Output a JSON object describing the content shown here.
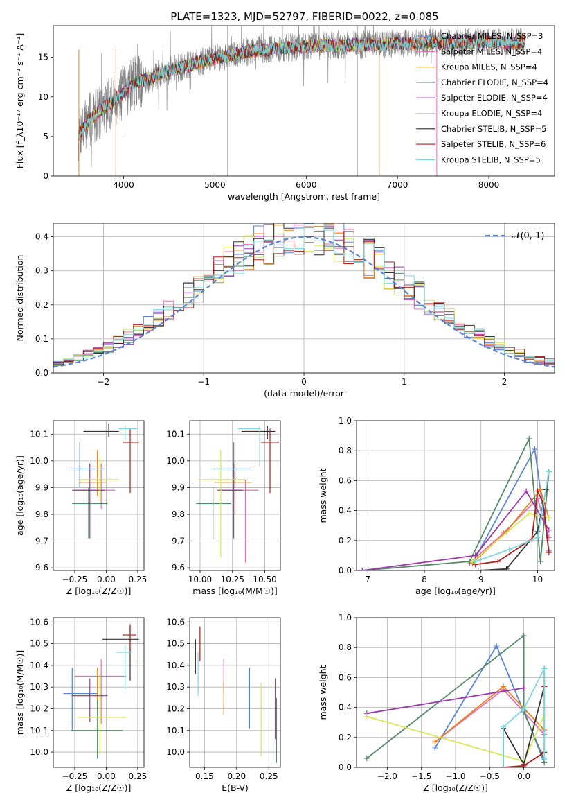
{
  "figure": {
    "suptitle": "PLATE=1323, MJD=52797, FIBERID=0022, z=0.085"
  },
  "chart_data": [
    {
      "id": "spectrum",
      "type": "line",
      "title": "PLATE=1323, MJD=52797, FIBERID=0022, z=0.085",
      "xlabel": "wavelength [Angstrom, rest frame]",
      "ylabel": "Flux [f_λ10⁻¹⁷ erg cm⁻² s⁻¹ A⁻¹]",
      "xlim": [
        3230,
        8720
      ],
      "ylim": [
        0,
        19
      ],
      "xticks": [
        4000,
        5000,
        6000,
        7000,
        8000
      ],
      "yticks": [
        0,
        5,
        10,
        15
      ],
      "grid": false,
      "legend_position": "top-right",
      "continuum_x": [
        3500,
        3600,
        3700,
        3800,
        3900,
        4000,
        4100,
        4200,
        4300,
        4400,
        4500,
        4600,
        4800,
        5000,
        5200,
        5400,
        5600,
        5800,
        6000,
        6200,
        6400,
        6600,
        6800,
        7000,
        7200,
        7400,
        7600,
        7800,
        8000,
        8200,
        8400
      ],
      "continuum_y": [
        5.0,
        6.8,
        7.8,
        8.8,
        9.6,
        10.6,
        11.6,
        12.0,
        12.2,
        13.0,
        13.3,
        13.6,
        14.3,
        14.9,
        15.3,
        15.8,
        16.0,
        16.2,
        16.4,
        16.5,
        16.5,
        16.6,
        16.6,
        16.8,
        16.7,
        16.9,
        16.8,
        16.9,
        17.0,
        16.8,
        17.0
      ],
      "series": [
        {
          "name": "Chabrier MILES, N_SSP=3",
          "color": "#5b84d6"
        },
        {
          "name": "Salpeter MILES, N_SSP=4",
          "color": "#e46fb8"
        },
        {
          "name": "Kroupa MILES, N_SSP=4",
          "color": "#e8841f"
        },
        {
          "name": "Chabrier ELODIE, N_SSP=4",
          "color": "#56896a"
        },
        {
          "name": "Salpeter ELODIE, N_SSP=4",
          "color": "#9b38ad"
        },
        {
          "name": "Kroupa ELODIE, N_SSP=4",
          "color": "#d6e85a"
        },
        {
          "name": "Chabrier STELIB, N_SSP=5",
          "color": "#333333"
        },
        {
          "name": "Salpeter STELIB, N_SSP=6",
          "color": "#b21c1c"
        },
        {
          "name": "Kroupa STELIB, N_SSP=5",
          "color": "#7fd9de"
        }
      ],
      "data_color": "#808080"
    },
    {
      "id": "residuals",
      "type": "line",
      "xlabel": "(data-model)/error",
      "ylabel": "Normed distribution",
      "xlim": [
        -2.5,
        2.5
      ],
      "ylim": [
        0,
        0.44
      ],
      "xticks": [
        -2,
        -1,
        0,
        1,
        2
      ],
      "yticks": [
        0.0,
        0.1,
        0.2,
        0.3,
        0.4
      ],
      "grid": true,
      "legend_position": "top-right",
      "gaussian_label": "𝒩(0, 1)",
      "gaussian_color": "#5b84d6",
      "bin_width": 0.1
    },
    {
      "id": "age-vs-Z",
      "type": "scatter",
      "xlabel": "Z [log₁₀(Z/Z☉)]",
      "ylabel": "age  [log₁₀(age/yr)]",
      "xlim": [
        -0.42,
        0.3
      ],
      "ylim": [
        9.59,
        10.15
      ],
      "xticks": [
        -0.25,
        0.0,
        0.25
      ],
      "yticks": [
        9.6,
        9.7,
        9.8,
        9.9,
        10.0,
        10.1
      ],
      "grid": true,
      "points": [
        {
          "color": "#5b84d6",
          "x": -0.21,
          "xerr": [
            0.07,
            0.2
          ],
          "y": 9.97,
          "yerr": [
            0.07,
            0.1
          ]
        },
        {
          "color": "#e46fb8",
          "x": -0.04,
          "xerr": [
            0.21,
            0.11
          ],
          "y": 9.89,
          "yerr": [
            0.07,
            0.1
          ]
        },
        {
          "color": "#e8841f",
          "x": -0.07,
          "xerr": [
            0.15,
            0.07
          ],
          "y": 9.92,
          "yerr": [
            0.05,
            0.12
          ]
        },
        {
          "color": "#56896a",
          "x": -0.14,
          "xerr": [
            0.13,
            0.15
          ],
          "y": 9.84,
          "yerr": [
            0.13,
            0.06
          ]
        },
        {
          "color": "#9b38ad",
          "x": -0.13,
          "xerr": [
            0.14,
            0.12
          ],
          "y": 9.89,
          "yerr": [
            0.18,
            0.1
          ]
        },
        {
          "color": "#d6e85a",
          "x": -0.05,
          "xerr": [
            0.18,
            0.15
          ],
          "y": 9.93,
          "yerr": [
            0.08,
            0.08
          ]
        },
        {
          "color": "#333333",
          "x": 0.02,
          "xerr": [
            0.2,
            0.08
          ],
          "y": 10.11,
          "yerr": [
            0.02,
            0.03
          ]
        },
        {
          "color": "#b21c1c",
          "x": 0.19,
          "xerr": [
            0.06,
            0.07
          ],
          "y": 10.07,
          "yerr": [
            0.19,
            0.05
          ]
        },
        {
          "color": "#7fd9de",
          "x": 0.15,
          "xerr": [
            0.05,
            0.1
          ],
          "y": 10.12,
          "yerr": [
            0.04,
            0.01
          ]
        }
      ]
    },
    {
      "id": "age-vs-mass",
      "type": "scatter",
      "xlabel": "mass [log₁₀(M/M☉)]",
      "ylabel": "",
      "xlim": [
        9.92,
        10.62
      ],
      "ylim": [
        9.59,
        10.15
      ],
      "xticks": [
        10.0,
        10.25,
        10.5
      ],
      "yticks": [
        9.6,
        9.7,
        9.8,
        9.9,
        10.0,
        10.1
      ],
      "grid": true,
      "points": [
        {
          "color": "#5b84d6",
          "x": 10.26,
          "xerr": [
            0.16,
            0.13
          ],
          "y": 9.97,
          "yerr": [
            0.07,
            0.1
          ]
        },
        {
          "color": "#e46fb8",
          "x": 10.35,
          "xerr": [
            0.22,
            0.1
          ],
          "y": 9.89,
          "yerr": [
            0.27,
            0.04
          ]
        },
        {
          "color": "#e8841f",
          "x": 10.27,
          "xerr": [
            0.16,
            0.13
          ],
          "y": 9.92,
          "yerr": [
            0.12,
            0.08
          ]
        },
        {
          "color": "#56896a",
          "x": 10.1,
          "xerr": [
            0.13,
            0.14
          ],
          "y": 9.84,
          "yerr": [
            0.13,
            0.06
          ]
        },
        {
          "color": "#9b38ad",
          "x": 10.26,
          "xerr": [
            0.12,
            0.07
          ],
          "y": 9.89,
          "yerr": [
            0.18,
            0.1
          ]
        },
        {
          "color": "#d6e85a",
          "x": 10.16,
          "xerr": [
            0.17,
            0.2
          ],
          "y": 9.93,
          "yerr": [
            0.29,
            0.11
          ]
        },
        {
          "color": "#333333",
          "x": 10.52,
          "xerr": [
            0.2,
            0.06
          ],
          "y": 10.11,
          "yerr": [
            0.03,
            0.02
          ]
        },
        {
          "color": "#b21c1c",
          "x": 10.54,
          "xerr": [
            0.07,
            0.07
          ],
          "y": 10.07,
          "yerr": [
            0.19,
            0.05
          ]
        },
        {
          "color": "#7fd9de",
          "x": 10.46,
          "xerr": [
            0.17,
            0.01
          ],
          "y": 10.12,
          "yerr": [
            0.14,
            0.01
          ]
        }
      ]
    },
    {
      "id": "weight-vs-age",
      "type": "line",
      "xlabel": "age  [log₁₀(age/yr)]",
      "ylabel": "mass weight",
      "xlim": [
        6.8,
        10.3
      ],
      "ylim": [
        0,
        1.0
      ],
      "xticks": [
        7,
        8,
        9,
        10
      ],
      "yticks": [
        0.0,
        0.2,
        0.4,
        0.6,
        0.8,
        1.0
      ],
      "grid": true,
      "series": [
        {
          "color": "#5b84d6",
          "x": [
            8.85,
            9.95,
            10.2
          ],
          "y": [
            0.05,
            0.81,
            0.13
          ]
        },
        {
          "color": "#e46fb8",
          "x": [
            8.8,
            9.4,
            10.0,
            10.2
          ],
          "y": [
            0.05,
            0.25,
            0.48,
            0.22
          ]
        },
        {
          "color": "#e8841f",
          "x": [
            8.85,
            9.45,
            10.05,
            10.2
          ],
          "y": [
            0.05,
            0.26,
            0.54,
            0.35
          ]
        },
        {
          "color": "#56896a",
          "x": [
            6.9,
            8.8,
            9.85,
            10.05,
            10.2
          ],
          "y": [
            0.0,
            0.06,
            0.88,
            0.06,
            0.66
          ]
        },
        {
          "color": "#9b38ad",
          "x": [
            6.9,
            8.9,
            9.8,
            10.2
          ],
          "y": [
            0.0,
            0.1,
            0.53,
            0.27
          ]
        },
        {
          "color": "#d6e85a",
          "x": [
            8.85,
            9.85,
            10.2
          ],
          "y": [
            0.06,
            0.38,
            0.35
          ]
        },
        {
          "color": "#333333",
          "x": [
            8.95,
            9.45,
            10.0,
            10.15,
            10.2
          ],
          "y": [
            0.0,
            0.01,
            0.26,
            0.54,
            0.66
          ]
        },
        {
          "color": "#b21c1c",
          "x": [
            8.9,
            9.3,
            9.9,
            10.0,
            10.1,
            10.2
          ],
          "y": [
            0.04,
            0.06,
            0.21,
            0.53,
            0.45,
            0.12
          ]
        },
        {
          "color": "#7fd9de",
          "x": [
            8.9,
            9.5,
            10.0,
            10.2
          ],
          "y": [
            0.06,
            0.14,
            0.22,
            0.66
          ]
        }
      ]
    },
    {
      "id": "mass-vs-Z",
      "type": "scatter",
      "xlabel": "Z [log₁₀(Z/Z☉)]",
      "ylabel": "mass [log₁₀(M/M☉)]",
      "xlim": [
        -0.42,
        0.3
      ],
      "ylim": [
        9.93,
        10.62
      ],
      "xticks": [
        -0.25,
        0.0,
        0.25
      ],
      "yticks": [
        10.0,
        10.1,
        10.2,
        10.3,
        10.4,
        10.5,
        10.6
      ],
      "grid": true,
      "points": [
        {
          "color": "#5b84d6",
          "x": -0.27,
          "xerr": [
            0.07,
            0.2
          ],
          "y": 10.27,
          "yerr": [
            0.17,
            0.12
          ]
        },
        {
          "color": "#e46fb8",
          "x": -0.04,
          "xerr": [
            0.21,
            0.2
          ],
          "y": 10.35,
          "yerr": [
            0.22,
            0.08
          ]
        },
        {
          "color": "#e8841f",
          "x": -0.07,
          "xerr": [
            0.21,
            0.05
          ],
          "y": 10.26,
          "yerr": [
            0.07,
            0.13
          ]
        },
        {
          "color": "#56896a",
          "x": -0.07,
          "xerr": [
            0.21,
            0.2
          ],
          "y": 10.1,
          "yerr": [
            0.13,
            0.14
          ]
        },
        {
          "color": "#9b38ad",
          "x": -0.13,
          "xerr": [
            0.14,
            0.14
          ],
          "y": 10.26,
          "yerr": [
            0.12,
            0.08
          ]
        },
        {
          "color": "#d6e85a",
          "x": -0.05,
          "xerr": [
            0.18,
            0.21
          ],
          "y": 10.16,
          "yerr": [
            0.17,
            0.2
          ]
        },
        {
          "color": "#333333",
          "x": 0.19,
          "xerr": [
            0.22,
            0.07
          ],
          "y": 10.52,
          "yerr": [
            0.19,
            0.06
          ]
        },
        {
          "color": "#b21c1c",
          "x": 0.19,
          "xerr": [
            0.06,
            0.05
          ],
          "y": 10.54,
          "yerr": [
            0.07,
            0.05
          ]
        },
        {
          "color": "#7fd9de",
          "x": 0.15,
          "xerr": [
            0.07,
            0.05
          ],
          "y": 10.46,
          "yerr": [
            0.17,
            0.03
          ]
        }
      ]
    },
    {
      "id": "mass-vs-EBV",
      "type": "scatter",
      "xlabel": "E(B-V)",
      "ylabel": "",
      "xlim": [
        0.127,
        0.268
      ],
      "ylim": [
        9.93,
        10.62
      ],
      "xticks": [
        0.15,
        0.2,
        0.25
      ],
      "yticks": [
        10.0,
        10.1,
        10.2,
        10.3,
        10.4,
        10.5,
        10.6
      ],
      "grid": true,
      "points": [
        {
          "color": "#5b84d6",
          "x": 0.22,
          "y": 10.25,
          "yerr": [
            0.14,
            0.14
          ]
        },
        {
          "color": "#e46fb8",
          "x": 0.18,
          "y": 10.35,
          "yerr": [
            0.08,
            0.08
          ]
        },
        {
          "color": "#e8841f",
          "x": 0.18,
          "y": 10.25,
          "yerr": [
            0.08,
            0.08
          ]
        },
        {
          "color": "#56896a",
          "x": 0.262,
          "y": 10.1,
          "yerr": [
            0.15,
            0.15
          ]
        },
        {
          "color": "#9b38ad",
          "x": 0.26,
          "y": 10.2,
          "yerr": [
            0.14,
            0.14
          ]
        },
        {
          "color": "#d6e85a",
          "x": 0.238,
          "y": 10.15,
          "yerr": [
            0.17,
            0.17
          ]
        },
        {
          "color": "#333333",
          "x": 0.136,
          "y": 10.44,
          "yerr": [
            0.08,
            0.08
          ]
        },
        {
          "color": "#b21c1c",
          "x": 0.143,
          "y": 10.5,
          "yerr": [
            0.08,
            0.08
          ]
        },
        {
          "color": "#7fd9de",
          "x": 0.14,
          "y": 10.36,
          "yerr": [
            0.1,
            0.1
          ]
        }
      ]
    },
    {
      "id": "weight-vs-Z",
      "type": "line",
      "xlabel": "Z [log₁₀(Z/Z☉)]",
      "ylabel": "mass weight",
      "xlim": [
        -2.45,
        0.45
      ],
      "ylim": [
        0,
        1.0
      ],
      "xticks": [
        -2.0,
        -1.5,
        -1.0,
        -0.5,
        0.0
      ],
      "yticks": [
        0.0,
        0.2,
        0.4,
        0.6,
        0.8,
        1.0
      ],
      "grid": true,
      "series": [
        {
          "color": "#5b84d6",
          "x": [
            -1.3,
            -0.4,
            0.0,
            0.3
          ],
          "y": [
            0.13,
            0.81,
            0.37,
            0.05
          ]
        },
        {
          "color": "#e46fb8",
          "x": [
            -1.3,
            -0.3,
            0.3
          ],
          "y": [
            0.17,
            0.52,
            0.22
          ]
        },
        {
          "color": "#e8841f",
          "x": [
            -1.3,
            -0.3,
            0.3
          ],
          "y": [
            0.17,
            0.54,
            0.25
          ]
        },
        {
          "color": "#56896a",
          "x": [
            -2.3,
            0.0,
            0.0,
            0.3
          ],
          "y": [
            0.06,
            0.88,
            0.38,
            0.03
          ]
        },
        {
          "color": "#9b38ad",
          "x": [
            -2.3,
            0.0
          ],
          "y": [
            0.36,
            0.53
          ]
        },
        {
          "color": "#d6e85a",
          "x": [
            -2.3,
            0.0,
            0.3
          ],
          "y": [
            0.34,
            0.04,
            0.35
          ]
        },
        {
          "color": "#333333",
          "x": [
            -0.3,
            -0.3,
            0.0,
            0.3,
            0.3
          ],
          "y": [
            0.0,
            0.26,
            0.02,
            0.54,
            0.66
          ]
        },
        {
          "color": "#b21c1c",
          "x": [
            -0.3,
            0.0,
            0.3,
            0.3
          ],
          "y": [
            0.0,
            0.01,
            0.1,
            0.54
          ]
        },
        {
          "color": "#7fd9de",
          "x": [
            -0.3,
            -0.3,
            0.0,
            0.3,
            0.3
          ],
          "y": [
            0.0,
            0.27,
            0.39,
            0.66,
            0.06
          ]
        }
      ]
    }
  ]
}
